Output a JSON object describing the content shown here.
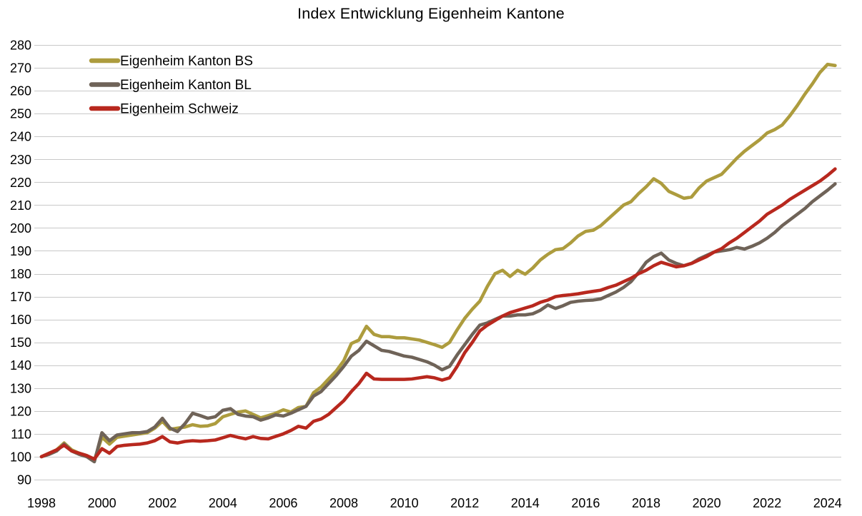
{
  "title": "Index Entwicklung Eigenheim Kantone",
  "chart_data": {
    "type": "line",
    "title": "Index Entwicklung Eigenheim Kantone",
    "xlabel": "",
    "ylabel": "",
    "x_start": 1998,
    "x_step": 0.25,
    "xlim": [
      1998,
      2024.45
    ],
    "ylim": [
      90,
      280
    ],
    "grid": "horizontal",
    "legend_position": "top-left-inside",
    "x_ticks": [
      1998,
      2000,
      2002,
      2004,
      2006,
      2008,
      2010,
      2012,
      2014,
      2016,
      2018,
      2020,
      2022,
      2024
    ],
    "y_ticks": [
      90,
      100,
      110,
      120,
      130,
      140,
      150,
      160,
      170,
      180,
      190,
      200,
      210,
      220,
      230,
      240,
      250,
      260,
      270,
      280
    ],
    "series": [
      {
        "name": "Eigenheim Kanton BS",
        "color": "#ad9c3e",
        "values": [
          100,
          101.5,
          103,
          106,
          103,
          101.5,
          100.5,
          98.5,
          108.5,
          105.5,
          108.5,
          109,
          109.5,
          110,
          110.5,
          112.5,
          115.5,
          112,
          112.5,
          113,
          114,
          113.3,
          113.5,
          114.5,
          117.5,
          118.5,
          119.5,
          120,
          118.5,
          117,
          118,
          119,
          120.5,
          119.5,
          121.5,
          122,
          128,
          130.5,
          134,
          137.5,
          142,
          149.5,
          151,
          157,
          153.5,
          152.5,
          152.5,
          152,
          152,
          151.5,
          151,
          150,
          149,
          147.8,
          150,
          155.5,
          160.5,
          164.5,
          168,
          174.5,
          180,
          181.5,
          178.8,
          181.5,
          179.8,
          182.5,
          186,
          188.5,
          190.5,
          191,
          193.5,
          196.5,
          198.5,
          199,
          201,
          204,
          207,
          210,
          211.5,
          215,
          218,
          221.5,
          219.5,
          216,
          214.5,
          213,
          213.5,
          217.5,
          220.5,
          222,
          223.5,
          227,
          230.5,
          233.5,
          236,
          238.5,
          241.5,
          243,
          245,
          249,
          253.5,
          258.5,
          263,
          268,
          271.5,
          271
        ]
      },
      {
        "name": "Eigenheim Kanton BL",
        "color": "#6f6358",
        "values": [
          100,
          101,
          102.5,
          105.5,
          102.5,
          101,
          100,
          97.8,
          110.5,
          107,
          109.5,
          110,
          110.5,
          110.5,
          111,
          113,
          116.8,
          112.5,
          111,
          114.5,
          119,
          118,
          116.8,
          117.5,
          120.3,
          121,
          118.5,
          117.8,
          117.5,
          116,
          117,
          118.3,
          117.8,
          119,
          120.5,
          122,
          126.5,
          128.5,
          132,
          135.5,
          139.5,
          144,
          146.5,
          150.5,
          148.5,
          146.5,
          146,
          145,
          144,
          143.5,
          142.5,
          141.5,
          140,
          138,
          139.5,
          144.5,
          149,
          153.5,
          157.5,
          158.5,
          160,
          161.5,
          161.5,
          162,
          162,
          162.5,
          164,
          166.3,
          164.8,
          166,
          167.5,
          168,
          168.3,
          168.5,
          169,
          170.5,
          172,
          174,
          176.5,
          180.5,
          185,
          187.5,
          189,
          186,
          184.5,
          183.5,
          184.5,
          186.5,
          188,
          189.5,
          190,
          190.5,
          191.5,
          190.8,
          192,
          193.5,
          195.5,
          198,
          201,
          203.5,
          206,
          208.5,
          211.5,
          214,
          216.5,
          219.3
        ]
      },
      {
        "name": "Eigenheim Schweiz",
        "color": "#b8281e",
        "values": [
          100,
          101.5,
          103,
          105,
          102.5,
          101.5,
          100.5,
          99,
          103.5,
          101.5,
          104.5,
          105,
          105.3,
          105.5,
          106,
          107,
          108.8,
          106.5,
          106,
          106.7,
          107,
          106.8,
          107,
          107.3,
          108.3,
          109.3,
          108.5,
          107.8,
          108.8,
          108,
          107.8,
          108.9,
          110,
          111.5,
          113.3,
          112.5,
          115.5,
          116.5,
          118.5,
          121.5,
          124.5,
          128.5,
          132,
          136.5,
          134,
          133.8,
          133.8,
          133.8,
          133.8,
          134,
          134.5,
          135,
          134.5,
          133.5,
          134.5,
          139.5,
          145.5,
          150,
          155,
          157.5,
          159.5,
          161.5,
          163,
          164,
          165,
          166,
          167.5,
          168.5,
          170,
          170.5,
          170.8,
          171.2,
          171.8,
          172.3,
          172.8,
          174,
          175,
          176.5,
          178,
          180,
          181.5,
          183.5,
          185,
          184,
          183,
          183.5,
          184.5,
          186,
          187.5,
          189.5,
          191,
          193.5,
          195.5,
          198,
          200.5,
          203,
          206,
          208,
          210,
          212.5,
          214.5,
          216.5,
          218.5,
          220.5,
          223,
          225.8
        ]
      }
    ]
  }
}
